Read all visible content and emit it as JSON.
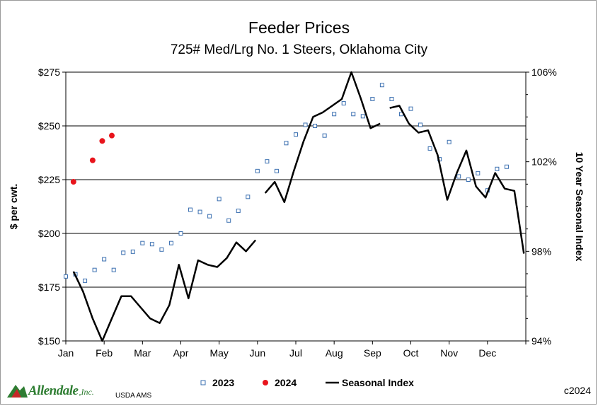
{
  "chart_data": {
    "type": "scatter+line",
    "title": "Feeder Prices",
    "subtitle": "725# Med/Lrg No. 1 Steers, Oklahoma City",
    "ylabel_left": "$ per cwt.",
    "ylabel_right": "10 Year Seasonal Index",
    "ylim_left": [
      150,
      275
    ],
    "ylim_right": [
      94,
      106
    ],
    "left_ticks": [
      "$150",
      "$175",
      "$200",
      "$225",
      "$250",
      "$275"
    ],
    "right_ticks": [
      "94%",
      "98%",
      "102%",
      "106%"
    ],
    "x_ticks": [
      "Jan",
      "Feb",
      "Mar",
      "Apr",
      "May",
      "Jun",
      "Jul",
      "Aug",
      "Sep",
      "Oct",
      "Nov",
      "Dec"
    ],
    "xlim": [
      0,
      12
    ],
    "series": [
      {
        "name": "2023",
        "kind": "marker-square",
        "color": "#3a6fb0",
        "points": [
          [
            0.0,
            180
          ],
          [
            0.25,
            181
          ],
          [
            0.5,
            178
          ],
          [
            0.75,
            183
          ],
          [
            1.0,
            188
          ],
          [
            1.25,
            183
          ],
          [
            1.5,
            191
          ],
          [
            1.75,
            191.5
          ],
          [
            2.0,
            195.5
          ],
          [
            2.25,
            195
          ],
          [
            2.5,
            192.5
          ],
          [
            2.75,
            195.5
          ],
          [
            3.0,
            200
          ],
          [
            3.25,
            211
          ],
          [
            3.5,
            210
          ],
          [
            3.75,
            208
          ],
          [
            4.0,
            216
          ],
          [
            4.25,
            206
          ],
          [
            4.5,
            210.5
          ],
          [
            4.75,
            217
          ],
          [
            5.0,
            229
          ],
          [
            5.25,
            233.5
          ],
          [
            5.5,
            229
          ],
          [
            5.75,
            242
          ],
          [
            6.0,
            246
          ],
          [
            6.25,
            250.5
          ],
          [
            6.5,
            250
          ],
          [
            6.75,
            245.5
          ],
          [
            7.0,
            255.5
          ],
          [
            7.25,
            260.5
          ],
          [
            7.5,
            255.5
          ],
          [
            7.75,
            254.5
          ],
          [
            8.0,
            262.5
          ],
          [
            8.25,
            269
          ],
          [
            8.5,
            262.5
          ],
          [
            8.75,
            255.5
          ],
          [
            9.0,
            258
          ],
          [
            9.25,
            250.5
          ],
          [
            9.5,
            239.5
          ],
          [
            9.75,
            234.5
          ],
          [
            10.0,
            242.5
          ],
          [
            10.25,
            226.5
          ],
          [
            10.5,
            225
          ],
          [
            10.75,
            228
          ],
          [
            11.0,
            220
          ],
          [
            11.25,
            230
          ],
          [
            11.5,
            231
          ]
        ]
      },
      {
        "name": "2024",
        "kind": "marker-circle",
        "color": "#e8141c",
        "points": [
          [
            0.2,
            224
          ],
          [
            0.7,
            234
          ],
          [
            0.95,
            243
          ],
          [
            1.2,
            245.5
          ]
        ]
      },
      {
        "name": "Seasonal Index",
        "kind": "line",
        "color": "#000000",
        "segments": [
          [
            [
              0.2,
              97.1
            ],
            [
              0.45,
              96.2
            ],
            [
              0.7,
              95.0
            ],
            [
              0.95,
              94.0
            ],
            [
              1.2,
              95.0
            ],
            [
              1.45,
              96.0
            ],
            [
              1.7,
              96.0
            ],
            [
              1.95,
              95.5
            ],
            [
              2.2,
              95.0
            ],
            [
              2.45,
              94.8
            ],
            [
              2.7,
              95.6
            ],
            [
              2.95,
              97.4
            ],
            [
              3.2,
              95.9
            ],
            [
              3.45,
              97.6
            ],
            [
              3.7,
              97.4
            ],
            [
              3.95,
              97.3
            ],
            [
              4.2,
              97.7
            ],
            [
              4.45,
              98.4
            ],
            [
              4.7,
              98.0
            ],
            [
              4.95,
              98.5
            ]
          ],
          [
            [
              5.2,
              100.6
            ],
            [
              5.45,
              101.1
            ],
            [
              5.7,
              100.2
            ],
            [
              5.95,
              101.6
            ],
            [
              6.2,
              102.9
            ],
            [
              6.45,
              104.0
            ],
            [
              6.7,
              104.2
            ],
            [
              6.95,
              104.5
            ],
            [
              7.2,
              104.8
            ],
            [
              7.45,
              106.0
            ],
            [
              7.7,
              104.8
            ],
            [
              7.95,
              103.5
            ],
            [
              8.2,
              103.7
            ]
          ],
          [
            [
              8.45,
              104.4
            ],
            [
              8.7,
              104.5
            ],
            [
              8.95,
              103.7
            ],
            [
              9.2,
              103.3
            ],
            [
              9.45,
              103.4
            ],
            [
              9.7,
              102.3
            ],
            [
              9.95,
              100.3
            ],
            [
              10.2,
              101.5
            ],
            [
              10.45,
              102.5
            ],
            [
              10.7,
              100.9
            ],
            [
              10.95,
              100.4
            ],
            [
              11.2,
              101.5
            ],
            [
              11.45,
              100.8
            ],
            [
              11.7,
              100.7
            ],
            [
              11.95,
              97.9
            ]
          ]
        ]
      }
    ]
  },
  "legend": {
    "label_2023": "2023",
    "label_2024": "2024",
    "label_seasonal": "Seasonal Index"
  },
  "footer": {
    "logo_text": "Allendale",
    "logo_suffix": ",Inc.",
    "source": "USDA AMS",
    "copyright": "c2024"
  },
  "colors": {
    "series_2023": "#3a6fb0",
    "series_2024": "#e8141c",
    "seasonal": "#000000",
    "logo_green": "#2e7d32",
    "logo_red": "#c62828"
  }
}
